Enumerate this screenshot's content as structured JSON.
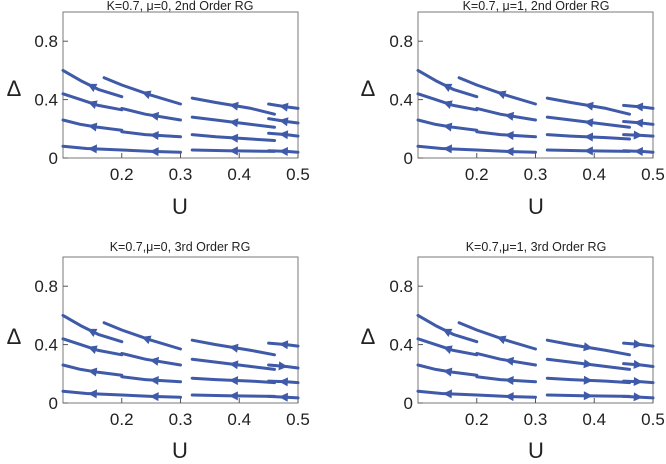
{
  "figure": {
    "panel_count": 4
  },
  "chart_data": [
    {
      "type": "line",
      "title": "K=0.7, μ=0, 2nd Order RG",
      "xlabel": "U",
      "ylabel": "Δ",
      "xlim": [
        0.1,
        0.5
      ],
      "ylim": [
        0,
        1
      ],
      "xticks": [
        "0.2",
        "0.3",
        "0.4",
        "0.5"
      ],
      "yticks": [
        "0",
        "0.4",
        "0.8"
      ],
      "grid": false,
      "line_color": "#3f5aa8",
      "series": [
        {
          "x": [
            0.1,
            0.13,
            0.16,
            0.2
          ],
          "y": [
            0.6,
            0.53,
            0.47,
            0.42
          ],
          "arrow_at": 0.5,
          "direction": "backward"
        },
        {
          "x": [
            0.1,
            0.13,
            0.16,
            0.2
          ],
          "y": [
            0.44,
            0.4,
            0.36,
            0.33
          ],
          "arrow_at": 0.5,
          "direction": "backward"
        },
        {
          "x": [
            0.1,
            0.13,
            0.16,
            0.2
          ],
          "y": [
            0.26,
            0.23,
            0.21,
            0.19
          ],
          "arrow_at": 0.5,
          "direction": "backward"
        },
        {
          "x": [
            0.1,
            0.14,
            0.17,
            0.2
          ],
          "y": [
            0.08,
            0.065,
            0.06,
            0.055
          ],
          "arrow_at": 0.5,
          "direction": "backward"
        },
        {
          "x": [
            0.17,
            0.2,
            0.25,
            0.3
          ],
          "y": [
            0.55,
            0.5,
            0.43,
            0.37
          ],
          "arrow_at": 0.55,
          "direction": "backward"
        },
        {
          "x": [
            0.2,
            0.24,
            0.3
          ],
          "y": [
            0.34,
            0.3,
            0.26
          ],
          "arrow_at": 0.55,
          "direction": "backward"
        },
        {
          "x": [
            0.2,
            0.24,
            0.3
          ],
          "y": [
            0.18,
            0.16,
            0.145
          ],
          "arrow_at": 0.55,
          "direction": "backward"
        },
        {
          "x": [
            0.2,
            0.25,
            0.3
          ],
          "y": [
            0.055,
            0.045,
            0.04
          ],
          "arrow_at": 0.55,
          "direction": "backward"
        },
        {
          "x": [
            0.32,
            0.36,
            0.42,
            0.46
          ],
          "y": [
            0.41,
            0.38,
            0.34,
            0.3
          ],
          "arrow_at": 0.5,
          "direction": "backward"
        },
        {
          "x": [
            0.32,
            0.36,
            0.42,
            0.46
          ],
          "y": [
            0.28,
            0.26,
            0.23,
            0.21
          ],
          "arrow_at": 0.5,
          "direction": "backward"
        },
        {
          "x": [
            0.32,
            0.36,
            0.42,
            0.46
          ],
          "y": [
            0.16,
            0.145,
            0.13,
            0.12
          ],
          "arrow_at": 0.5,
          "direction": "backward"
        },
        {
          "x": [
            0.32,
            0.38,
            0.46
          ],
          "y": [
            0.055,
            0.05,
            0.045
          ],
          "arrow_at": 0.5,
          "direction": "backward"
        },
        {
          "x": [
            0.45,
            0.48,
            0.5
          ],
          "y": [
            0.37,
            0.35,
            0.34
          ],
          "arrow_at": 0.5,
          "direction": "backward"
        },
        {
          "x": [
            0.45,
            0.48,
            0.5
          ],
          "y": [
            0.27,
            0.25,
            0.24
          ],
          "arrow_at": 0.5,
          "direction": "backward"
        },
        {
          "x": [
            0.45,
            0.48,
            0.5
          ],
          "y": [
            0.17,
            0.16,
            0.15
          ],
          "arrow_at": 0.5,
          "direction": "backward"
        },
        {
          "x": [
            0.45,
            0.48,
            0.5
          ],
          "y": [
            0.05,
            0.045,
            0.04
          ],
          "arrow_at": 0.5,
          "direction": "backward"
        }
      ]
    },
    {
      "type": "line",
      "title": "K=0.7, μ=1, 2nd Order RG",
      "xlabel": "U",
      "ylabel": "Δ",
      "xlim": [
        0.1,
        0.5
      ],
      "ylim": [
        0,
        1
      ],
      "xticks": [
        "0.2",
        "0.3",
        "0.4",
        "0.5"
      ],
      "yticks": [
        "0",
        "0.4",
        "0.8"
      ],
      "grid": false,
      "line_color": "#3f5aa8",
      "series": [
        {
          "x": [
            0.1,
            0.13,
            0.16,
            0.2
          ],
          "y": [
            0.6,
            0.53,
            0.47,
            0.42
          ],
          "arrow_at": 0.5,
          "direction": "backward"
        },
        {
          "x": [
            0.1,
            0.13,
            0.16,
            0.2
          ],
          "y": [
            0.44,
            0.4,
            0.36,
            0.33
          ],
          "arrow_at": 0.5,
          "direction": "backward"
        },
        {
          "x": [
            0.1,
            0.13,
            0.16,
            0.2
          ],
          "y": [
            0.26,
            0.23,
            0.21,
            0.19
          ],
          "arrow_at": 0.5,
          "direction": "backward"
        },
        {
          "x": [
            0.1,
            0.14,
            0.17,
            0.2
          ],
          "y": [
            0.08,
            0.065,
            0.06,
            0.055
          ],
          "arrow_at": 0.5,
          "direction": "backward"
        },
        {
          "x": [
            0.17,
            0.2,
            0.25,
            0.3
          ],
          "y": [
            0.55,
            0.5,
            0.43,
            0.37
          ],
          "arrow_at": 0.55,
          "direction": "backward"
        },
        {
          "x": [
            0.2,
            0.24,
            0.3
          ],
          "y": [
            0.34,
            0.3,
            0.26
          ],
          "arrow_at": 0.55,
          "direction": "backward"
        },
        {
          "x": [
            0.2,
            0.24,
            0.3
          ],
          "y": [
            0.18,
            0.16,
            0.145
          ],
          "arrow_at": 0.55,
          "direction": "backward"
        },
        {
          "x": [
            0.2,
            0.25,
            0.3
          ],
          "y": [
            0.055,
            0.045,
            0.04
          ],
          "arrow_at": 0.55,
          "direction": "backward"
        },
        {
          "x": [
            0.32,
            0.36,
            0.42,
            0.46
          ],
          "y": [
            0.41,
            0.38,
            0.34,
            0.3
          ],
          "arrow_at": 0.5,
          "direction": "backward"
        },
        {
          "x": [
            0.32,
            0.36,
            0.42,
            0.46
          ],
          "y": [
            0.28,
            0.26,
            0.23,
            0.21
          ],
          "arrow_at": 0.5,
          "direction": "backward"
        },
        {
          "x": [
            0.32,
            0.36,
            0.42,
            0.46
          ],
          "y": [
            0.16,
            0.15,
            0.14,
            0.13
          ],
          "arrow_at": 0.5,
          "direction": "backward"
        },
        {
          "x": [
            0.32,
            0.38,
            0.46
          ],
          "y": [
            0.055,
            0.05,
            0.045
          ],
          "arrow_at": 0.5,
          "direction": "backward"
        },
        {
          "x": [
            0.45,
            0.48,
            0.5
          ],
          "y": [
            0.36,
            0.35,
            0.34
          ],
          "arrow_at": 0.5,
          "direction": "backward"
        },
        {
          "x": [
            0.45,
            0.48,
            0.5
          ],
          "y": [
            0.25,
            0.24,
            0.23
          ],
          "arrow_at": 0.5,
          "direction": "backward"
        },
        {
          "x": [
            0.45,
            0.48,
            0.5
          ],
          "y": [
            0.16,
            0.155,
            0.15
          ],
          "arrow_at": 0.5,
          "direction": "forward"
        },
        {
          "x": [
            0.45,
            0.48,
            0.5
          ],
          "y": [
            0.05,
            0.045,
            0.04
          ],
          "arrow_at": 0.5,
          "direction": "backward"
        }
      ]
    },
    {
      "type": "line",
      "title": "K=0.7,μ=0, 3rd Order RG",
      "xlabel": "U",
      "ylabel": "Δ",
      "xlim": [
        0.1,
        0.5
      ],
      "ylim": [
        0,
        1
      ],
      "xticks": [
        "0.2",
        "0.3",
        "0.4",
        "0.5"
      ],
      "yticks": [
        "0",
        "0.4",
        "0.8"
      ],
      "grid": false,
      "line_color": "#3f5aa8",
      "series": [
        {
          "x": [
            0.1,
            0.13,
            0.16,
            0.2
          ],
          "y": [
            0.6,
            0.53,
            0.47,
            0.42
          ],
          "arrow_at": 0.5,
          "direction": "backward"
        },
        {
          "x": [
            0.1,
            0.13,
            0.16,
            0.2
          ],
          "y": [
            0.44,
            0.4,
            0.36,
            0.33
          ],
          "arrow_at": 0.5,
          "direction": "backward"
        },
        {
          "x": [
            0.1,
            0.13,
            0.16,
            0.2
          ],
          "y": [
            0.26,
            0.23,
            0.21,
            0.19
          ],
          "arrow_at": 0.5,
          "direction": "backward"
        },
        {
          "x": [
            0.1,
            0.14,
            0.17,
            0.2
          ],
          "y": [
            0.08,
            0.065,
            0.06,
            0.055
          ],
          "arrow_at": 0.5,
          "direction": "backward"
        },
        {
          "x": [
            0.17,
            0.2,
            0.25,
            0.3
          ],
          "y": [
            0.55,
            0.5,
            0.43,
            0.37
          ],
          "arrow_at": 0.55,
          "direction": "backward"
        },
        {
          "x": [
            0.2,
            0.24,
            0.3
          ],
          "y": [
            0.34,
            0.3,
            0.26
          ],
          "arrow_at": 0.55,
          "direction": "backward"
        },
        {
          "x": [
            0.2,
            0.24,
            0.3
          ],
          "y": [
            0.18,
            0.16,
            0.145
          ],
          "arrow_at": 0.55,
          "direction": "backward"
        },
        {
          "x": [
            0.2,
            0.25,
            0.3
          ],
          "y": [
            0.055,
            0.045,
            0.04
          ],
          "arrow_at": 0.55,
          "direction": "backward"
        },
        {
          "x": [
            0.32,
            0.36,
            0.42,
            0.46
          ],
          "y": [
            0.43,
            0.4,
            0.36,
            0.33
          ],
          "arrow_at": 0.5,
          "direction": "backward"
        },
        {
          "x": [
            0.32,
            0.36,
            0.42,
            0.46
          ],
          "y": [
            0.3,
            0.28,
            0.25,
            0.23
          ],
          "arrow_at": 0.5,
          "direction": "backward"
        },
        {
          "x": [
            0.32,
            0.36,
            0.42,
            0.46
          ],
          "y": [
            0.17,
            0.16,
            0.15,
            0.14
          ],
          "arrow_at": 0.5,
          "direction": "backward"
        },
        {
          "x": [
            0.32,
            0.38,
            0.46
          ],
          "y": [
            0.055,
            0.05,
            0.045
          ],
          "arrow_at": 0.5,
          "direction": "backward"
        },
        {
          "x": [
            0.45,
            0.48,
            0.5
          ],
          "y": [
            0.41,
            0.4,
            0.39
          ],
          "arrow_at": 0.5,
          "direction": "backward"
        },
        {
          "x": [
            0.45,
            0.48,
            0.5
          ],
          "y": [
            0.26,
            0.25,
            0.24
          ],
          "arrow_at": 0.5,
          "direction": "forward"
        },
        {
          "x": [
            0.45,
            0.48,
            0.5
          ],
          "y": [
            0.15,
            0.145,
            0.14
          ],
          "arrow_at": 0.5,
          "direction": "backward"
        },
        {
          "x": [
            0.45,
            0.48,
            0.5
          ],
          "y": [
            0.045,
            0.04,
            0.035
          ],
          "arrow_at": 0.5,
          "direction": "backward"
        }
      ]
    },
    {
      "type": "line",
      "title": "K=0.7,μ=1, 3rd Order RG",
      "xlabel": "U",
      "ylabel": "Δ",
      "xlim": [
        0.1,
        0.5
      ],
      "ylim": [
        0,
        1
      ],
      "xticks": [
        "0.2",
        "0.3",
        "0.4",
        "0.5"
      ],
      "yticks": [
        "0",
        "0.4",
        "0.8"
      ],
      "grid": false,
      "line_color": "#3f5aa8",
      "series": [
        {
          "x": [
            0.1,
            0.13,
            0.16,
            0.2
          ],
          "y": [
            0.6,
            0.53,
            0.47,
            0.42
          ],
          "arrow_at": 0.5,
          "direction": "backward"
        },
        {
          "x": [
            0.1,
            0.13,
            0.16,
            0.2
          ],
          "y": [
            0.44,
            0.4,
            0.36,
            0.33
          ],
          "arrow_at": 0.5,
          "direction": "backward"
        },
        {
          "x": [
            0.1,
            0.13,
            0.16,
            0.2
          ],
          "y": [
            0.26,
            0.23,
            0.21,
            0.19
          ],
          "arrow_at": 0.5,
          "direction": "backward"
        },
        {
          "x": [
            0.1,
            0.14,
            0.17,
            0.2
          ],
          "y": [
            0.08,
            0.065,
            0.06,
            0.055
          ],
          "arrow_at": 0.5,
          "direction": "backward"
        },
        {
          "x": [
            0.17,
            0.2,
            0.25,
            0.3
          ],
          "y": [
            0.55,
            0.5,
            0.43,
            0.37
          ],
          "arrow_at": 0.55,
          "direction": "backward"
        },
        {
          "x": [
            0.2,
            0.24,
            0.3
          ],
          "y": [
            0.34,
            0.3,
            0.26
          ],
          "arrow_at": 0.55,
          "direction": "backward"
        },
        {
          "x": [
            0.2,
            0.24,
            0.3
          ],
          "y": [
            0.18,
            0.16,
            0.145
          ],
          "arrow_at": 0.55,
          "direction": "backward"
        },
        {
          "x": [
            0.2,
            0.25,
            0.3
          ],
          "y": [
            0.055,
            0.045,
            0.04
          ],
          "arrow_at": 0.55,
          "direction": "backward"
        },
        {
          "x": [
            0.32,
            0.36,
            0.42,
            0.46
          ],
          "y": [
            0.43,
            0.4,
            0.36,
            0.33
          ],
          "arrow_at": 0.5,
          "direction": "forward"
        },
        {
          "x": [
            0.32,
            0.36,
            0.42,
            0.46
          ],
          "y": [
            0.3,
            0.28,
            0.25,
            0.23
          ],
          "arrow_at": 0.5,
          "direction": "forward"
        },
        {
          "x": [
            0.32,
            0.36,
            0.42,
            0.46
          ],
          "y": [
            0.17,
            0.16,
            0.15,
            0.14
          ],
          "arrow_at": 0.5,
          "direction": "forward"
        },
        {
          "x": [
            0.32,
            0.38,
            0.46
          ],
          "y": [
            0.055,
            0.05,
            0.045
          ],
          "arrow_at": 0.5,
          "direction": "forward"
        },
        {
          "x": [
            0.45,
            0.48,
            0.5
          ],
          "y": [
            0.41,
            0.4,
            0.39
          ],
          "arrow_at": 0.5,
          "direction": "forward"
        },
        {
          "x": [
            0.45,
            0.48,
            0.5
          ],
          "y": [
            0.27,
            0.26,
            0.25
          ],
          "arrow_at": 0.5,
          "direction": "forward"
        },
        {
          "x": [
            0.45,
            0.48,
            0.5
          ],
          "y": [
            0.15,
            0.145,
            0.14
          ],
          "arrow_at": 0.5,
          "direction": "forward"
        },
        {
          "x": [
            0.45,
            0.48,
            0.5
          ],
          "y": [
            0.045,
            0.04,
            0.035
          ],
          "arrow_at": 0.5,
          "direction": "forward"
        }
      ]
    }
  ]
}
